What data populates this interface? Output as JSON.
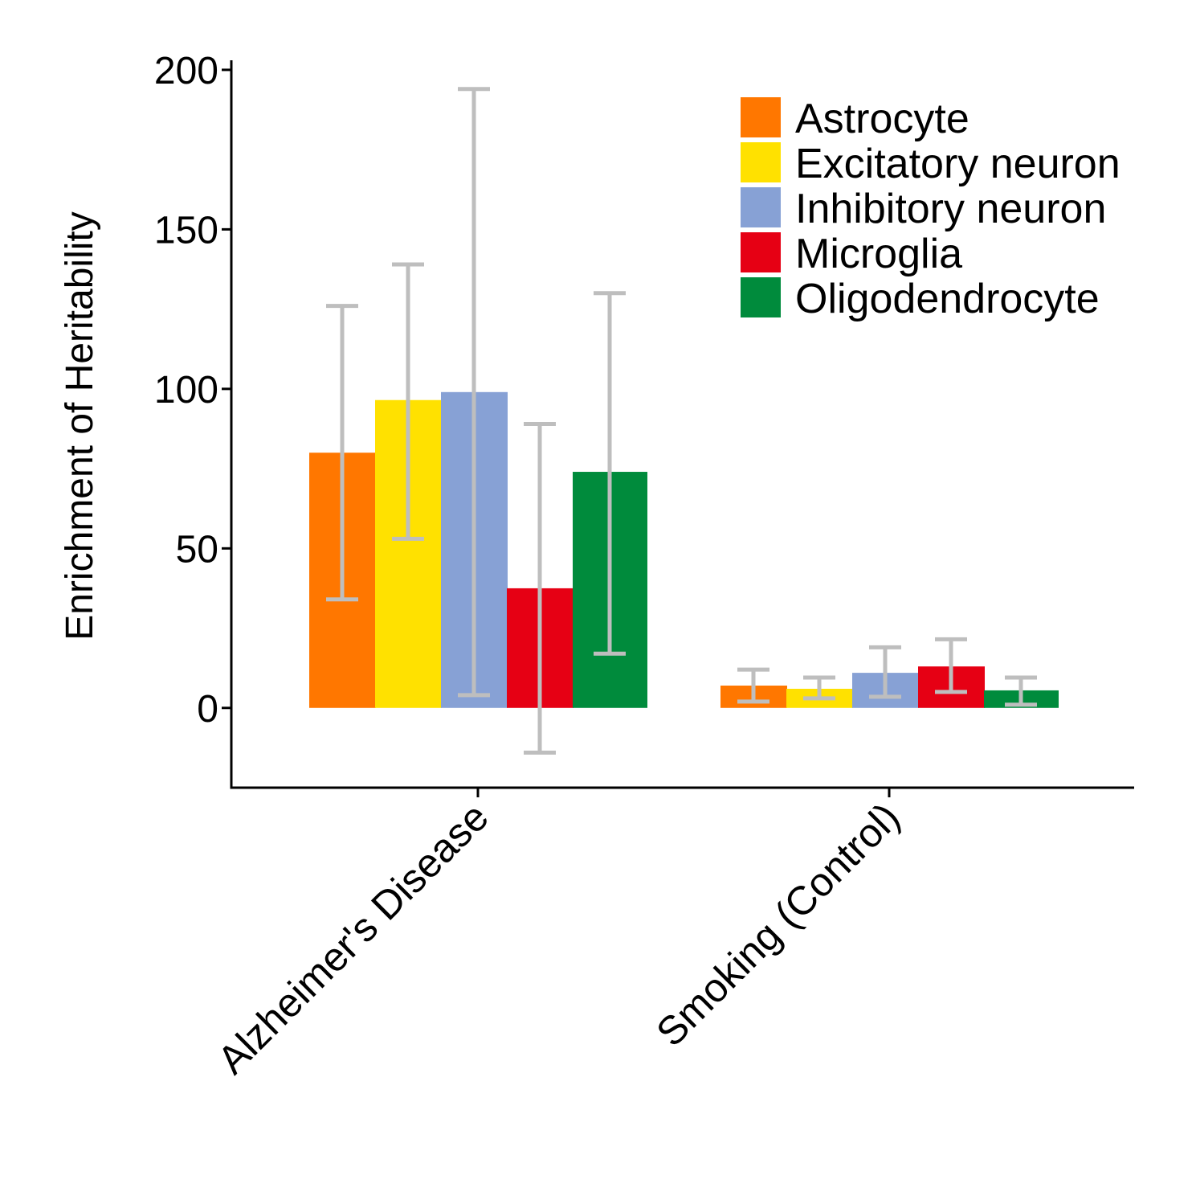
{
  "chart_data": {
    "type": "bar",
    "title": "",
    "xlabel": "",
    "ylabel": "Enrichment of Heritability",
    "ylim": [
      -25,
      203
    ],
    "yticks": [
      0,
      50,
      100,
      150,
      200
    ],
    "categories": [
      "Alzheimer's Disease",
      "Smoking (Control)"
    ],
    "legend_position": "top-right",
    "grid": false,
    "error_bar_color": "#BEBEBE",
    "series": [
      {
        "name": "Astrocyte",
        "color": "#FF7700",
        "values": [
          80,
          7
        ],
        "err_low": [
          34,
          2
        ],
        "err_high": [
          126,
          12
        ]
      },
      {
        "name": "Excitatory neuron",
        "color": "#FFE100",
        "values": [
          96.5,
          6
        ],
        "err_low": [
          53,
          3
        ],
        "err_high": [
          139,
          9.5
        ]
      },
      {
        "name": "Inhibitory neuron",
        "color": "#87A1D5",
        "values": [
          99,
          11
        ],
        "err_low": [
          4,
          3.5
        ],
        "err_high": [
          194,
          19
        ]
      },
      {
        "name": "Microglia",
        "color": "#E60014",
        "values": [
          37.5,
          13
        ],
        "err_low": [
          -14,
          5
        ],
        "err_high": [
          89,
          21.5
        ]
      },
      {
        "name": "Oligodendrocyte",
        "color": "#008B3C",
        "values": [
          74,
          5.5
        ],
        "err_low": [
          17,
          1
        ],
        "err_high": [
          130,
          9.5
        ]
      }
    ]
  }
}
